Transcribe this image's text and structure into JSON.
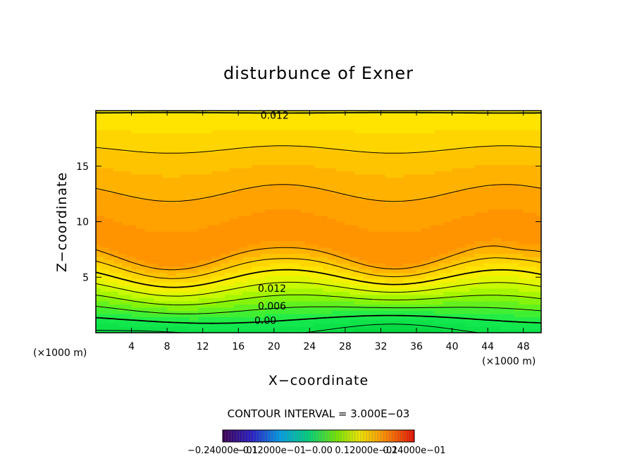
{
  "chart_data": {
    "type": "heatmap",
    "title": "disturbunce of Exner",
    "xlabel": "X−coordinate",
    "ylabel": "Z−coordinate",
    "x_unit_left": "(×1000 m)",
    "x_unit_right": "(×1000 m)",
    "xlim": [
      0,
      50
    ],
    "ylim": [
      0,
      20
    ],
    "x_ticks": [
      "4",
      "8",
      "12",
      "16",
      "20",
      "24",
      "28",
      "32",
      "36",
      "40",
      "44",
      "48"
    ],
    "y_ticks": [
      "5",
      "10",
      "15"
    ],
    "contour_interval_text": "CONTOUR INTERVAL = 3.000E−03",
    "contour_labels": [
      {
        "text": "0.012",
        "x": 18.5,
        "z": 19.6
      },
      {
        "text": "0.012",
        "x": 18.2,
        "z": 4.0
      },
      {
        "text": "0.006",
        "x": 18.2,
        "z": 2.4
      },
      {
        "text": "0.00",
        "x": 17.8,
        "z": 1.1
      }
    ],
    "colorbar_labels": [
      "−0.24000e−01",
      "−0.12000e−01",
      "−0.00",
      "0.12000e−01",
      "0.24000e−01"
    ],
    "colorbar_range": [
      -0.024,
      0.024
    ],
    "field_note": "Exner pressure disturbance: negative near the ground, maximum about 0.021 near z = 8, with maxima centred near x = 21 and x = 47.5",
    "colors": {
      "low": "#00e040",
      "mid": "#e8ff00",
      "high": "#ff7a00",
      "top": "#ffff00",
      "contour": "#000000"
    }
  }
}
